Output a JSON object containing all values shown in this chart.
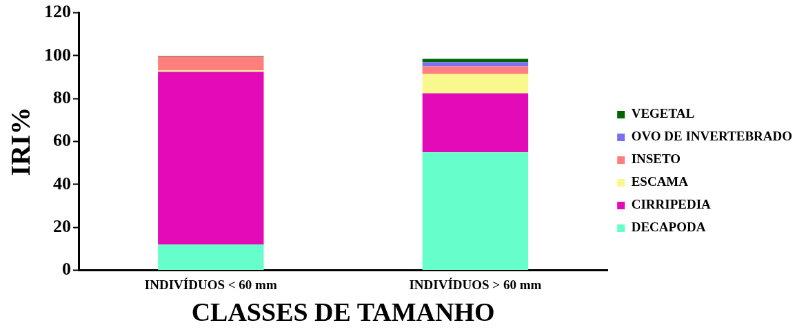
{
  "chart_data": {
    "type": "bar",
    "stacked": true,
    "xlabel": "CLASSES DE TAMANHO",
    "ylabel": "IRI%",
    "categories": [
      "INDIVÍDUOS < 60 mm",
      "INDIVÍDUOS > 60 mm"
    ],
    "series": [
      {
        "name": "DECAPODA",
        "color": "#66ffcc",
        "values": [
          12,
          55
        ]
      },
      {
        "name": "CIRRIPEDIA",
        "color": "#e30ab8",
        "values": [
          80.5,
          27.5
        ]
      },
      {
        "name": "ESCAMA",
        "color": "#f8f88c",
        "values": [
          0.7,
          9
        ]
      },
      {
        "name": "INSETO",
        "color": "#ff7f7f",
        "values": [
          6.5,
          3.5
        ]
      },
      {
        "name": "OVO DE INVERTEBRADO",
        "color": "#7b70f0",
        "values": [
          0,
          2
        ]
      },
      {
        "name": "VEGETAL",
        "color": "#006400",
        "values": [
          0.3,
          1.5
        ]
      }
    ],
    "ylim": [
      0,
      120
    ],
    "yticks": [
      0,
      20,
      40,
      60,
      80,
      100,
      120
    ],
    "grid": false,
    "legend": "right"
  }
}
